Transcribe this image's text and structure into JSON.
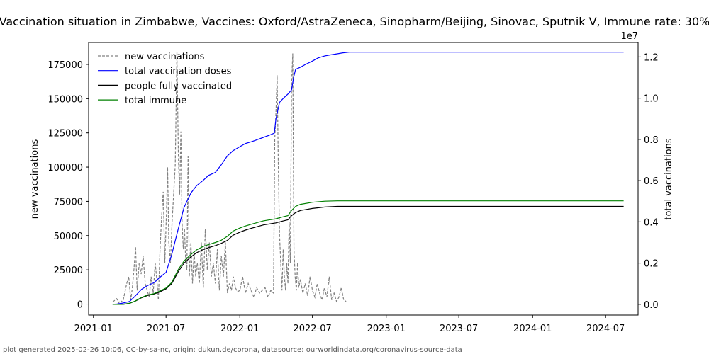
{
  "title": "Vaccination situation in Zimbabwe, Vaccines: Oxford/AstraZeneca, Sinopharm/Beijing, Sinovac, Sputnik V, Immune rate: 30%",
  "footer": "plot generated 2025-02-26 10:06, CC-by-sa-nc, origin: dukun.de/corona, datasource: ourworldindata.org/coronavirus-source-data",
  "colors": {
    "new": "#808080",
    "total": "#0000ff",
    "fully": "#000000",
    "immune": "#008000"
  },
  "chart_data": {
    "type": "line",
    "title": "Vaccination situation in Zimbabwe, Vaccines: Oxford/AstraZeneca, Sinopharm/Beijing, Sinovac, Sputnik V, Immune rate: 30%",
    "xlabel": "",
    "ylabel_left": "new vaccinations",
    "ylabel_right": "total vaccinations",
    "right_axis_offset_label": "1e7",
    "xlim": [
      "2020-12-20",
      "2024-09-20"
    ],
    "ylim_left": [
      -8000,
      191000
    ],
    "ylim_right": [
      -520000,
      12700000
    ],
    "x_ticks": [
      "2021-01",
      "2021-07",
      "2022-01",
      "2022-07",
      "2023-01",
      "2023-07",
      "2024-01",
      "2024-07"
    ],
    "y_ticks_left": [
      "0",
      "25000",
      "50000",
      "75000",
      "100000",
      "125000",
      "150000",
      "175000"
    ],
    "y_ticks_right": [
      "0.0",
      "0.2",
      "0.4",
      "0.6",
      "0.8",
      "1.0",
      "1.2"
    ],
    "legend": {
      "position": "top-left",
      "entries": [
        "new vaccinations",
        "total vaccination doses",
        "people fully vaccinated",
        "total immune"
      ]
    },
    "grid": false,
    "series": [
      {
        "name": "new vaccinations",
        "axis": "left",
        "style": "dashed",
        "x": [
          "2021-02-18",
          "2021-02-28",
          "2021-03-05",
          "2021-03-10",
          "2021-03-15",
          "2021-03-20",
          "2021-03-25",
          "2021-03-30",
          "2021-04-04",
          "2021-04-08",
          "2021-04-12",
          "2021-04-16",
          "2021-04-20",
          "2021-04-25",
          "2021-04-30",
          "2021-05-05",
          "2021-05-10",
          "2021-05-15",
          "2021-05-20",
          "2021-05-25",
          "2021-05-30",
          "2021-06-04",
          "2021-06-08",
          "2021-06-12",
          "2021-06-16",
          "2021-06-20",
          "2021-06-24",
          "2021-06-28",
          "2021-07-02",
          "2021-07-05",
          "2021-07-08",
          "2021-07-12",
          "2021-07-16",
          "2021-07-20",
          "2021-07-24",
          "2021-07-28",
          "2021-08-01",
          "2021-08-04",
          "2021-08-07",
          "2021-08-10",
          "2021-08-13",
          "2021-08-16",
          "2021-08-19",
          "2021-08-22",
          "2021-08-25",
          "2021-08-28",
          "2021-09-01",
          "2021-09-05",
          "2021-09-09",
          "2021-09-13",
          "2021-09-17",
          "2021-09-22",
          "2021-09-27",
          "2021-10-02",
          "2021-10-07",
          "2021-10-12",
          "2021-10-17",
          "2021-10-22",
          "2021-10-27",
          "2021-11-01",
          "2021-11-06",
          "2021-11-11",
          "2021-11-16",
          "2021-11-21",
          "2021-11-26",
          "2021-12-01",
          "2021-12-06",
          "2021-12-11",
          "2021-12-16",
          "2021-12-21",
          "2021-12-26",
          "2022-01-01",
          "2022-01-08",
          "2022-01-15",
          "2022-01-22",
          "2022-01-29",
          "2022-02-05",
          "2022-02-12",
          "2022-02-19",
          "2022-02-26",
          "2022-03-05",
          "2022-03-12",
          "2022-03-19",
          "2022-03-26",
          "2022-03-29",
          "2022-04-01",
          "2022-04-04",
          "2022-04-07",
          "2022-04-10",
          "2022-04-13",
          "2022-04-16",
          "2022-04-19",
          "2022-04-22",
          "2022-04-25",
          "2022-04-28",
          "2022-05-01",
          "2022-05-04",
          "2022-05-07",
          "2022-05-10",
          "2022-05-13",
          "2022-05-16",
          "2022-05-19",
          "2022-05-22",
          "2022-05-25",
          "2022-05-28",
          "2022-06-01",
          "2022-06-07",
          "2022-06-13",
          "2022-06-19",
          "2022-06-25",
          "2022-07-01",
          "2022-07-07",
          "2022-07-13",
          "2022-07-19",
          "2022-07-25",
          "2022-07-31",
          "2022-08-06",
          "2022-08-12",
          "2022-08-18",
          "2022-08-24",
          "2022-08-30",
          "2022-09-05",
          "2022-09-11",
          "2022-09-17",
          "2022-09-23"
        ],
        "values": [
          1500,
          4000,
          1000,
          2500,
          1500,
          8000,
          15000,
          20000,
          3000,
          12000,
          25000,
          42000,
          10000,
          30000,
          22000,
          35000,
          15000,
          10000,
          5000,
          20000,
          8000,
          30000,
          18000,
          3000,
          40000,
          64000,
          82000,
          30000,
          65000,
          100000,
          45000,
          30000,
          60000,
          80000,
          102000,
          184000,
          105000,
          80000,
          126000,
          60000,
          40000,
          55000,
          32000,
          25000,
          108000,
          20000,
          45000,
          15000,
          38000,
          20000,
          30000,
          15000,
          45000,
          12000,
          55000,
          25000,
          45000,
          20000,
          30000,
          15000,
          40000,
          10000,
          35000,
          20000,
          45000,
          8000,
          15000,
          10000,
          20000,
          12000,
          9000,
          10000,
          20000,
          8000,
          15000,
          10000,
          5000,
          12000,
          8000,
          10000,
          12000,
          5000,
          10000,
          8000,
          120000,
          140000,
          167000,
          100000,
          50000,
          30000,
          10000,
          40000,
          20000,
          10000,
          30000,
          15000,
          60000,
          30000,
          160000,
          183000,
          40000,
          20000,
          10000,
          30000,
          12000,
          18000,
          8000,
          15000,
          6000,
          20000,
          10000,
          5000,
          15000,
          8000,
          3000,
          12000,
          5000,
          20000,
          3000,
          8000,
          2000,
          5000,
          12000,
          3000,
          2000
        ]
      },
      {
        "name": "total vaccination doses",
        "axis": "right",
        "style": "solid",
        "x": [
          "2021-02-18",
          "2021-03-01",
          "2021-03-15",
          "2021-04-01",
          "2021-04-15",
          "2021-05-01",
          "2021-05-15",
          "2021-06-01",
          "2021-06-15",
          "2021-07-01",
          "2021-07-15",
          "2021-08-01",
          "2021-08-15",
          "2021-09-01",
          "2021-09-15",
          "2021-10-01",
          "2021-10-15",
          "2021-11-01",
          "2021-11-15",
          "2021-12-01",
          "2021-12-15",
          "2022-01-01",
          "2022-01-15",
          "2022-02-01",
          "2022-02-15",
          "2022-03-01",
          "2022-03-15",
          "2022-03-28",
          "2022-04-01",
          "2022-04-10",
          "2022-04-20",
          "2022-05-01",
          "2022-05-10",
          "2022-05-15",
          "2022-05-20",
          "2022-06-01",
          "2022-06-15",
          "2022-07-01",
          "2022-07-15",
          "2022-08-01",
          "2022-08-15",
          "2022-09-01",
          "2022-09-15",
          "2022-10-01",
          "2022-11-01",
          "2023-01-01",
          "2023-07-01",
          "2024-01-01",
          "2024-08-15"
        ],
        "values": [
          0,
          20000,
          60000,
          140000,
          400000,
          730000,
          900000,
          1050000,
          1300000,
          1550000,
          2400000,
          3700000,
          4700000,
          5400000,
          5750000,
          6000000,
          6250000,
          6400000,
          6750000,
          7200000,
          7450000,
          7650000,
          7800000,
          7900000,
          8000000,
          8100000,
          8200000,
          8300000,
          9000000,
          9800000,
          10000000,
          10200000,
          10400000,
          11000000,
          11400000,
          11500000,
          11650000,
          11800000,
          11950000,
          12050000,
          12100000,
          12150000,
          12200000,
          12230000,
          12230000,
          12230000,
          12230000,
          12230000,
          12230000
        ]
      },
      {
        "name": "people fully vaccinated",
        "axis": "right",
        "style": "solid",
        "x": [
          "2021-02-18",
          "2021-03-15",
          "2021-04-01",
          "2021-04-15",
          "2021-05-01",
          "2021-05-15",
          "2021-06-01",
          "2021-06-15",
          "2021-07-01",
          "2021-07-15",
          "2021-08-01",
          "2021-08-15",
          "2021-09-01",
          "2021-09-15",
          "2021-10-01",
          "2021-10-15",
          "2021-11-01",
          "2021-11-15",
          "2021-12-01",
          "2021-12-15",
          "2022-01-01",
          "2022-01-15",
          "2022-02-01",
          "2022-03-01",
          "2022-04-01",
          "2022-04-20",
          "2022-05-01",
          "2022-05-10",
          "2022-05-20",
          "2022-06-01",
          "2022-07-01",
          "2022-08-01",
          "2022-09-01",
          "2022-10-01",
          "2023-01-01",
          "2024-08-15"
        ],
        "values": [
          0,
          0,
          50000,
          150000,
          320000,
          420000,
          500000,
          600000,
          750000,
          1000000,
          1600000,
          2000000,
          2300000,
          2500000,
          2650000,
          2750000,
          2850000,
          2950000,
          3100000,
          3350000,
          3500000,
          3600000,
          3700000,
          3850000,
          3950000,
          4050000,
          4100000,
          4300000,
          4450000,
          4550000,
          4650000,
          4720000,
          4750000,
          4750000,
          4750000,
          4750000
        ]
      },
      {
        "name": "total immune",
        "axis": "right",
        "style": "solid",
        "x": [
          "2021-02-18",
          "2021-03-15",
          "2021-04-01",
          "2021-04-15",
          "2021-05-01",
          "2021-05-15",
          "2021-06-01",
          "2021-06-15",
          "2021-07-01",
          "2021-07-15",
          "2021-08-01",
          "2021-08-15",
          "2021-09-01",
          "2021-09-15",
          "2021-10-01",
          "2021-10-15",
          "2021-11-01",
          "2021-11-15",
          "2021-12-01",
          "2021-12-15",
          "2022-01-01",
          "2022-01-15",
          "2022-02-01",
          "2022-03-01",
          "2022-04-01",
          "2022-04-20",
          "2022-05-01",
          "2022-05-10",
          "2022-05-20",
          "2022-06-01",
          "2022-07-01",
          "2022-08-01",
          "2022-09-01",
          "2022-10-01",
          "2023-01-01",
          "2024-08-15"
        ],
        "values": [
          0,
          0,
          50000,
          160000,
          340000,
          450000,
          520000,
          640000,
          790000,
          1060000,
          1700000,
          2100000,
          2420000,
          2640000,
          2800000,
          2900000,
          3000000,
          3100000,
          3300000,
          3550000,
          3700000,
          3800000,
          3900000,
          4050000,
          4150000,
          4250000,
          4300000,
          4550000,
          4750000,
          4850000,
          4950000,
          5000000,
          5020000,
          5020000,
          5020000,
          5020000
        ]
      }
    ]
  }
}
